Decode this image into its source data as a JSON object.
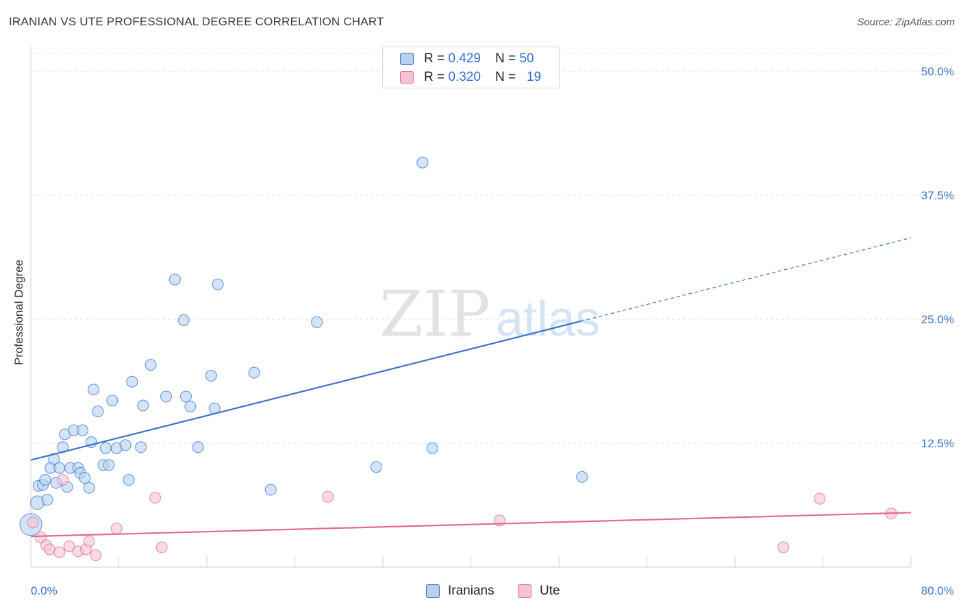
{
  "title": "IRANIAN VS UTE PROFESSIONAL DEGREE CORRELATION CHART",
  "source": "Source: ZipAtlas.com",
  "colors": {
    "blue": "#3a74c9",
    "blue_fill": "#b6d2f2",
    "pink": "#e06b95",
    "pink_fill": "#f7c3d3",
    "grid": "#e0e0e0"
  },
  "legend": {
    "rows": [
      {
        "r_label": "R = ",
        "r_value": "0.429",
        "n_label": "N = ",
        "n_value": "50"
      },
      {
        "r_label": "R = ",
        "r_value": "0.320",
        "n_label": "N = ",
        "n_value": "19"
      }
    ]
  },
  "bottom_legend": {
    "series1": "Iranians",
    "series2": "Ute"
  },
  "watermark": {
    "part1": "ZIP",
    "part2": "atlas"
  },
  "chart_data": {
    "type": "scatter",
    "title": "IRANIAN VS UTE PROFESSIONAL DEGREE CORRELATION CHART",
    "xlabel": "",
    "ylabel": "Professional Degree",
    "xlim": [
      0,
      80
    ],
    "ylim": [
      0,
      52
    ],
    "x_tick_labels": [
      "0.0%",
      "80.0%"
    ],
    "y_ticks": [
      12.5,
      25.0,
      37.5,
      50.0
    ],
    "y_tick_labels": [
      "12.5%",
      "25.0%",
      "37.5%",
      "50.0%"
    ],
    "series": [
      {
        "name": "Iranians",
        "r": 0.429,
        "n": 50,
        "trend": {
          "x0": 0,
          "y0": 10.8,
          "x1": 50,
          "y1": 24.8,
          "dashed_to_x": 80,
          "dashed_to_y": 33.2
        },
        "points": [
          [
            0.0,
            4.3,
            16
          ],
          [
            0.6,
            6.5,
            10
          ],
          [
            0.7,
            8.2,
            8
          ],
          [
            1.1,
            8.3,
            8
          ],
          [
            1.3,
            8.8,
            8
          ],
          [
            1.5,
            6.8,
            8
          ],
          [
            1.8,
            10.0,
            8
          ],
          [
            2.1,
            10.9,
            8
          ],
          [
            2.3,
            8.5,
            8
          ],
          [
            2.6,
            10.0,
            8
          ],
          [
            2.9,
            12.1,
            8
          ],
          [
            3.1,
            13.4,
            8
          ],
          [
            3.3,
            8.1,
            8
          ],
          [
            3.6,
            10.0,
            8
          ],
          [
            3.9,
            13.8,
            8
          ],
          [
            4.3,
            10.0,
            8
          ],
          [
            4.5,
            9.5,
            8
          ],
          [
            4.7,
            13.8,
            8
          ],
          [
            4.9,
            9.0,
            8
          ],
          [
            5.3,
            8.0,
            8
          ],
          [
            5.5,
            12.6,
            8
          ],
          [
            5.7,
            17.9,
            8
          ],
          [
            6.1,
            15.7,
            8
          ],
          [
            6.6,
            10.3,
            8
          ],
          [
            6.8,
            12.0,
            8
          ],
          [
            7.1,
            10.3,
            8
          ],
          [
            7.4,
            16.8,
            8
          ],
          [
            7.8,
            12.0,
            8
          ],
          [
            8.6,
            12.3,
            8
          ],
          [
            8.9,
            8.8,
            8
          ],
          [
            9.2,
            18.7,
            8
          ],
          [
            10.0,
            12.1,
            8
          ],
          [
            10.2,
            16.3,
            8
          ],
          [
            10.9,
            20.4,
            8
          ],
          [
            12.3,
            17.2,
            8
          ],
          [
            13.1,
            29.0,
            8
          ],
          [
            13.9,
            24.9,
            8
          ],
          [
            14.1,
            17.2,
            8
          ],
          [
            14.5,
            16.2,
            8
          ],
          [
            15.2,
            12.1,
            8
          ],
          [
            16.4,
            19.3,
            8
          ],
          [
            16.7,
            16.0,
            8
          ],
          [
            17.0,
            28.5,
            8
          ],
          [
            20.3,
            19.6,
            8
          ],
          [
            21.8,
            7.8,
            8
          ],
          [
            26.0,
            24.7,
            8
          ],
          [
            31.4,
            10.1,
            8
          ],
          [
            35.6,
            40.8,
            8
          ],
          [
            36.5,
            12.0,
            8
          ],
          [
            50.1,
            9.1,
            8
          ]
        ]
      },
      {
        "name": "Ute",
        "r": 0.32,
        "n": 19,
        "trend": {
          "x0": 0,
          "y0": 3.1,
          "x1": 80,
          "y1": 5.5
        },
        "points": [
          [
            0.2,
            4.5,
            8
          ],
          [
            0.9,
            3.0,
            8
          ],
          [
            1.4,
            2.2,
            8
          ],
          [
            1.7,
            1.8,
            8
          ],
          [
            2.6,
            1.5,
            8
          ],
          [
            2.9,
            8.8,
            8
          ],
          [
            3.5,
            2.1,
            8
          ],
          [
            4.3,
            1.6,
            8
          ],
          [
            5.0,
            1.8,
            8
          ],
          [
            5.3,
            2.6,
            8
          ],
          [
            5.9,
            1.2,
            8
          ],
          [
            7.8,
            3.9,
            8
          ],
          [
            11.3,
            7.0,
            8
          ],
          [
            11.9,
            2.0,
            8
          ],
          [
            27.0,
            7.1,
            8
          ],
          [
            42.6,
            4.7,
            8
          ],
          [
            68.4,
            2.0,
            8
          ],
          [
            71.7,
            6.9,
            8
          ],
          [
            78.2,
            5.4,
            8
          ]
        ]
      }
    ]
  }
}
